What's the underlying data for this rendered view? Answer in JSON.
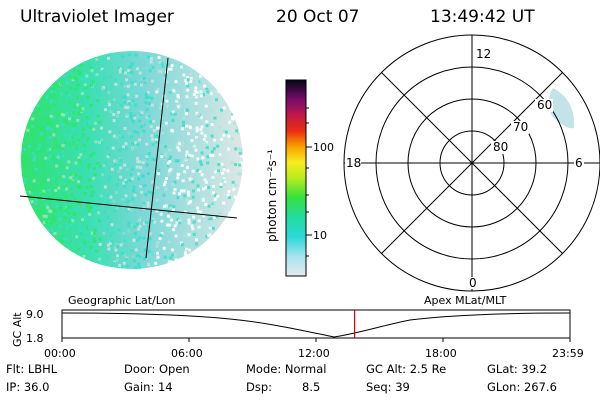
{
  "header": {
    "instrument": "Ultraviolet Imager",
    "date": "20 Oct 07",
    "time": "13:49:42 UT"
  },
  "colorbar": {
    "label": "photon cm⁻²s⁻¹",
    "ticks": [
      "100",
      "10"
    ]
  },
  "polar_plot": {
    "mlt_labels": [
      "12",
      "18",
      "6",
      "0"
    ],
    "mlat_labels": [
      "60",
      "70",
      "80"
    ]
  },
  "timeline": {
    "left_label": "Geographic Lat/Lon",
    "right_label": "Apex MLat/MLT",
    "axis_title": "GC Alt",
    "y_ticks": [
      "9.0",
      "1.8"
    ],
    "x_ticks": [
      "00:00",
      "06:00",
      "12:00",
      "18:00",
      "23:59"
    ],
    "current_time_fraction": 0.576
  },
  "footer": {
    "flt": "Flt: LBHL",
    "ip": "IP: 36.0",
    "door": "Door: Open",
    "gain": "Gain: 14",
    "mode": "Mode: Normal",
    "dsp_label": "Dsp:",
    "dsp_value": "8.5",
    "gc_alt": "GC Alt: 2.5 Re",
    "seq": "Seq: 39",
    "glat": "GLat: 39.2",
    "glon": "GLon: 267.6"
  },
  "colors": {
    "accent_marker": "#e00000",
    "globe_bright": "#2ee860",
    "globe_mid": "#36e0c8",
    "globe_dim": "#cfe4e2"
  }
}
